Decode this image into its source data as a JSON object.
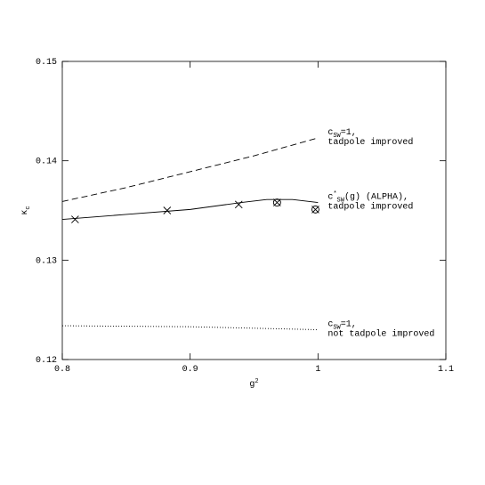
{
  "chart_data": {
    "type": "line",
    "x_label": [
      {
        "text": "g"
      },
      {
        "text": "2",
        "pos": "sup"
      }
    ],
    "y_label": [
      {
        "text": "κ"
      },
      {
        "text": "c",
        "pos": "sub"
      }
    ],
    "xlim": [
      0.8,
      1.1
    ],
    "xticks": [
      0.8,
      0.9,
      1,
      1.1
    ],
    "ylim": [
      0.12,
      0.15
    ],
    "yticks": [
      0.12,
      0.13,
      0.14,
      0.15
    ],
    "series": [
      {
        "style": "dashed",
        "color": "#000000",
        "x": [
          0.8,
          0.85,
          0.9,
          0.95,
          1.0
        ],
        "values": [
          0.1359,
          0.1373,
          0.1389,
          0.1405,
          0.1423
        ],
        "label": [
          [
            {
              "text": "c"
            },
            {
              "text": "SW",
              "pos": "sub"
            },
            {
              "text": "=1,"
            }
          ],
          [
            {
              "text": "tadpole improved"
            }
          ]
        ]
      },
      {
        "style": "solid",
        "color": "#000000",
        "x": [
          0.8,
          0.85,
          0.9,
          0.94,
          0.96,
          0.98,
          1.0
        ],
        "values": [
          0.1341,
          0.1346,
          0.1351,
          0.1358,
          0.1361,
          0.1361,
          0.1358
        ],
        "label": [
          [
            {
              "text": "c"
            },
            {
              "text": "*",
              "pos": "sup"
            },
            {
              "text": "SW",
              "pos": "sub"
            },
            {
              "text": "(g) (ALPHA),"
            }
          ],
          [
            {
              "text": "tadpole improved"
            }
          ]
        ]
      },
      {
        "style": "dotted",
        "color": "#000000",
        "x": [
          0.8,
          0.9,
          1.0
        ],
        "values": [
          0.1234,
          0.1233,
          0.123
        ],
        "label": [
          [
            {
              "text": "c"
            },
            {
              "text": "SW",
              "pos": "sub"
            },
            {
              "text": "=1,"
            }
          ],
          [
            {
              "text": "not tadpole improved"
            }
          ]
        ]
      },
      {
        "marker": "cross",
        "color": "#000000",
        "x": [
          0.81,
          0.882,
          0.938,
          0.968,
          0.998
        ],
        "values": [
          0.1341,
          0.135,
          0.1356,
          0.1358,
          0.1351
        ]
      },
      {
        "marker": "circle",
        "color": "#000000",
        "x": [
          0.968,
          0.998
        ],
        "values": [
          0.1358,
          0.1351
        ]
      }
    ]
  }
}
